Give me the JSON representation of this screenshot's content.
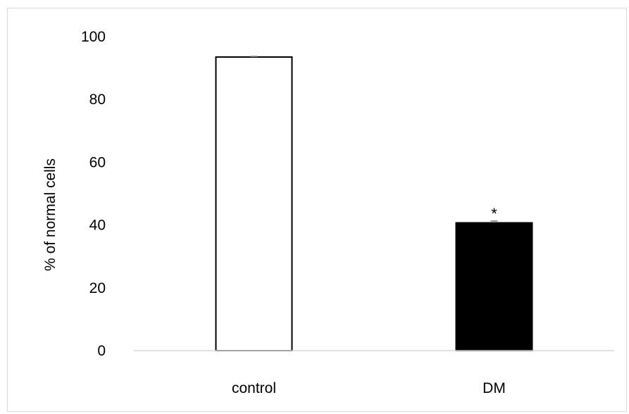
{
  "chart_data": {
    "type": "bar",
    "categories": [
      "control",
      "DM"
    ],
    "values": [
      93.5,
      40.7
    ],
    "errors": [
      0.2,
      0.6
    ],
    "bar_colors": [
      "#ffffff",
      "#000000"
    ],
    "bar_edge_color": "#000000",
    "annotations": [
      {
        "category": "DM",
        "text": "*"
      }
    ],
    "title": "",
    "xlabel": "",
    "ylabel": "% of normal cells",
    "ylim": [
      0,
      100
    ],
    "yticks": [
      0,
      20,
      40,
      60,
      80,
      100
    ],
    "grid": false,
    "legend": "none"
  }
}
